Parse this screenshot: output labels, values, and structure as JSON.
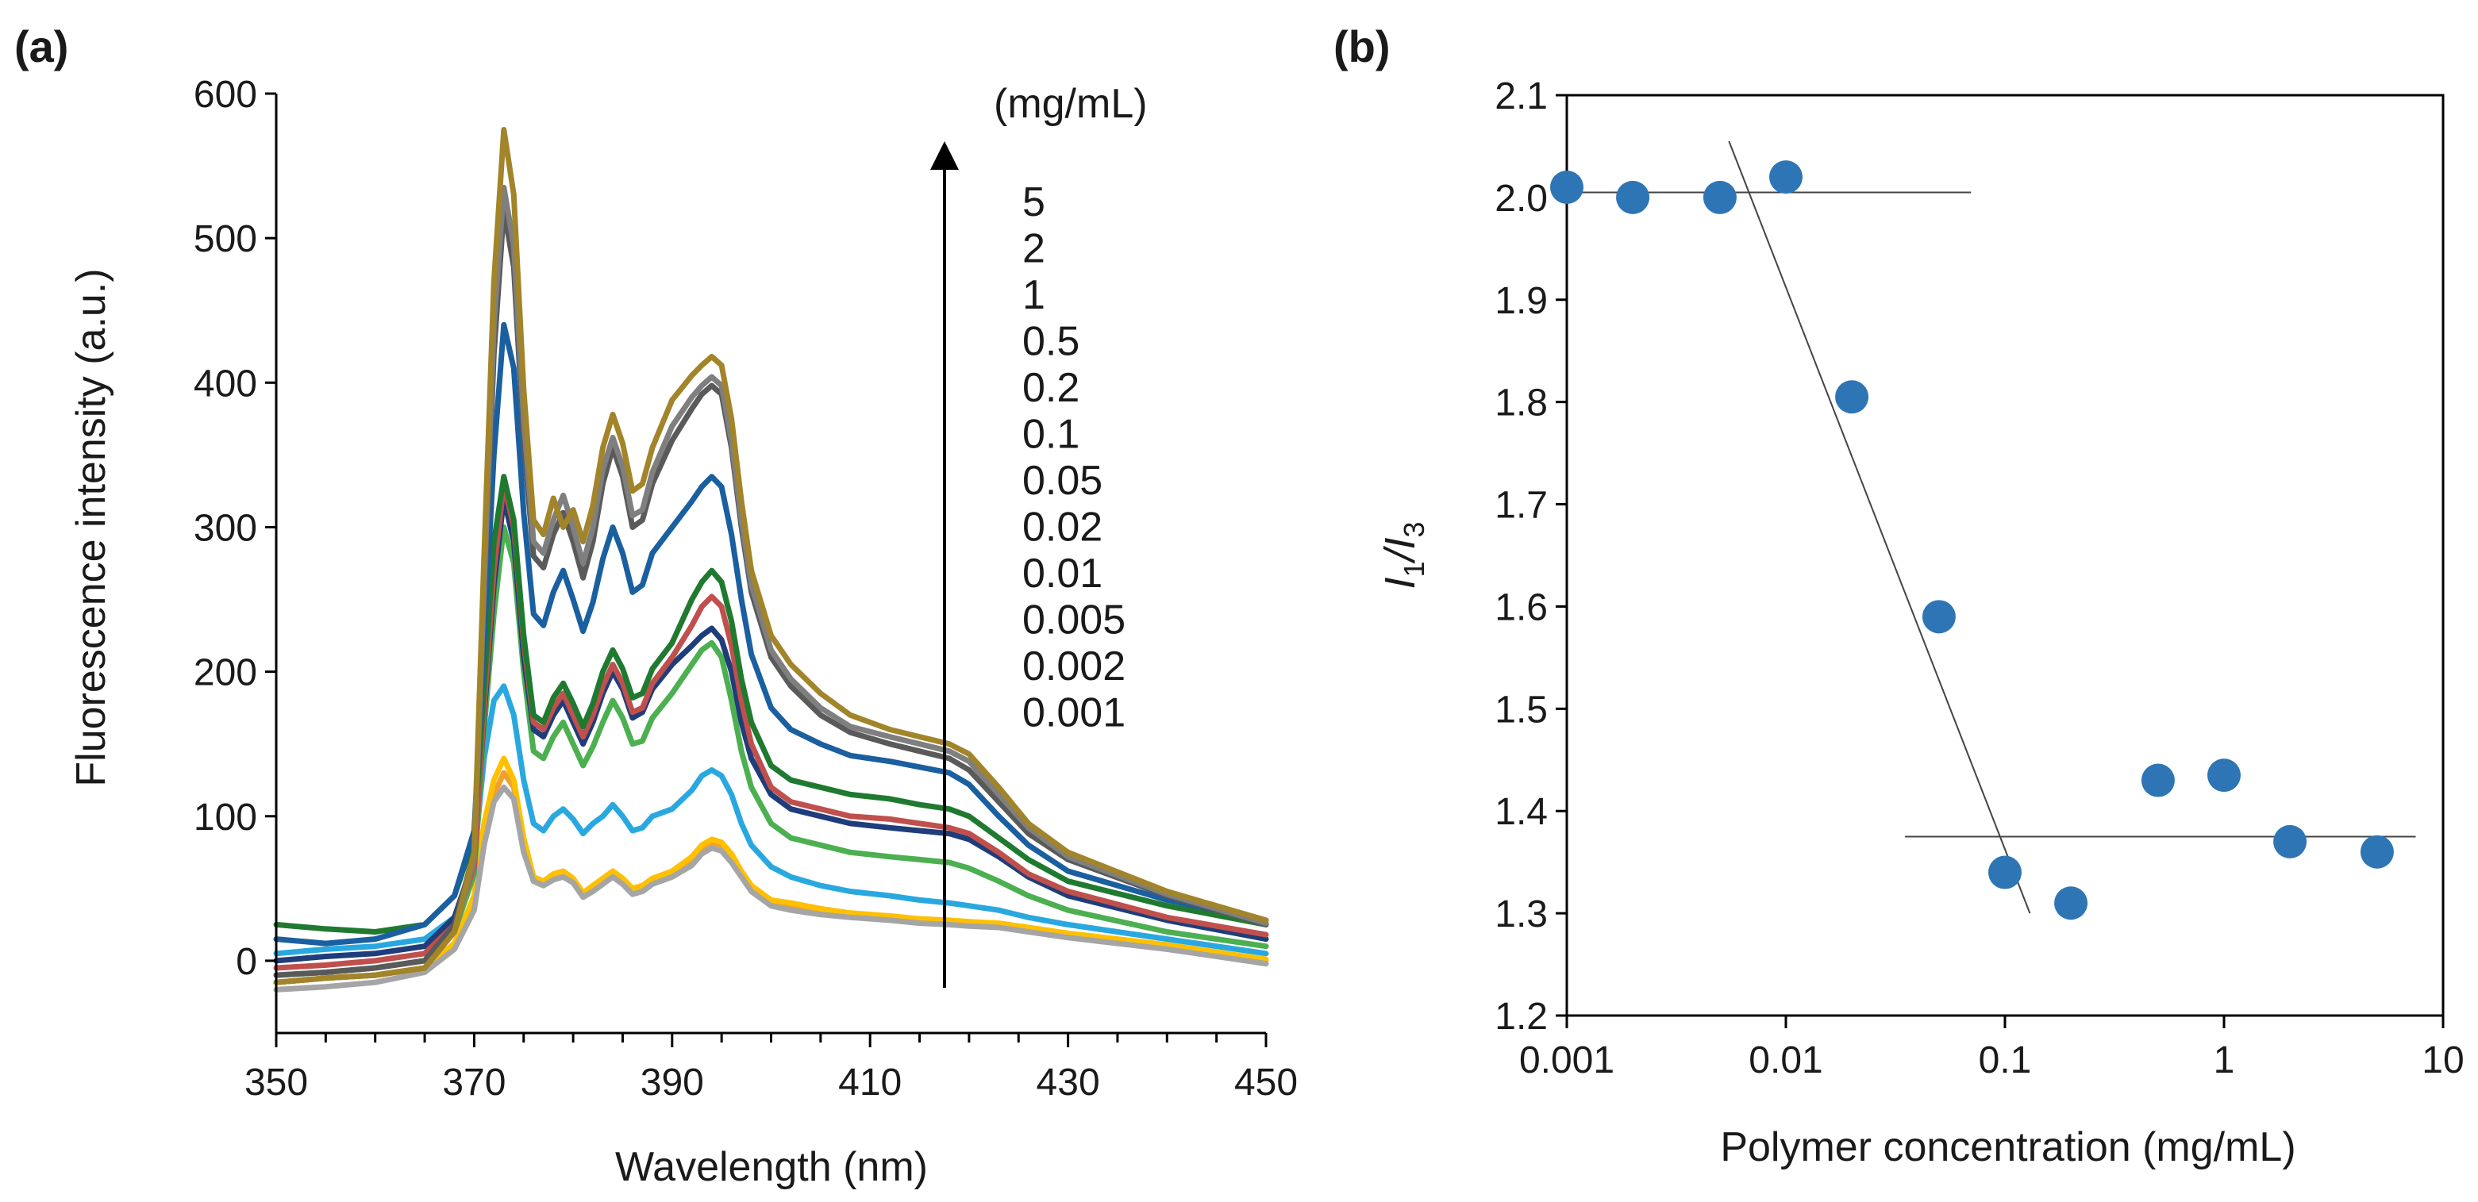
{
  "chart_data": [
    {
      "panel_label": "(a)",
      "type": "line",
      "xlabel": "Wavelength (nm)",
      "ylabel": "Fluorescence intensity (a.u.)",
      "xlim": [
        350,
        450
      ],
      "ylim": [
        -50,
        600
      ],
      "x_ticks": [
        350,
        370,
        390,
        410,
        430,
        450
      ],
      "y_ticks": [
        0,
        100,
        200,
        300,
        400,
        500,
        600
      ],
      "legend_title": "(mg/mL)",
      "legend_entries": [
        "5",
        "2",
        "1",
        "0.5",
        "0.2",
        "0.1",
        "0.05",
        "0.02",
        "0.01",
        "0.005",
        "0.002",
        "0.001"
      ],
      "x": [
        350,
        355,
        360,
        365,
        368,
        370,
        371,
        372,
        373,
        374,
        375,
        376,
        377,
        378,
        379,
        380,
        381,
        382,
        383,
        384,
        385,
        386,
        387,
        388,
        390,
        392,
        393,
        394,
        395,
        396,
        397,
        398,
        400,
        402,
        405,
        408,
        412,
        415,
        418,
        420,
        423,
        426,
        430,
        440,
        450
      ],
      "series": [
        {
          "name": "0.001",
          "color": "#f0a030",
          "values": [
            -15,
            -12,
            -10,
            -5,
            10,
            40,
            85,
            115,
            130,
            120,
            80,
            55,
            52,
            58,
            60,
            55,
            45,
            50,
            55,
            60,
            55,
            48,
            50,
            55,
            60,
            70,
            78,
            82,
            80,
            72,
            60,
            50,
            40,
            38,
            35,
            32,
            30,
            28,
            27,
            26,
            25,
            22,
            18,
            10,
            0
          ]
        },
        {
          "name": "0.002",
          "color": "#ffc000",
          "values": [
            -15,
            -12,
            -10,
            -5,
            12,
            45,
            95,
            125,
            140,
            125,
            85,
            58,
            55,
            60,
            62,
            57,
            47,
            52,
            57,
            62,
            57,
            50,
            52,
            57,
            62,
            72,
            80,
            84,
            82,
            74,
            62,
            52,
            42,
            40,
            36,
            33,
            31,
            29,
            28,
            27,
            26,
            23,
            19,
            11,
            1
          ]
        },
        {
          "name": "0.005",
          "color": "#a5a5a5",
          "values": [
            -20,
            -18,
            -15,
            -8,
            8,
            35,
            80,
            110,
            120,
            112,
            75,
            55,
            52,
            56,
            58,
            54,
            44,
            48,
            53,
            58,
            53,
            46,
            48,
            53,
            58,
            66,
            74,
            78,
            76,
            68,
            58,
            48,
            38,
            35,
            32,
            30,
            28,
            26,
            25,
            24,
            23,
            20,
            16,
            8,
            -2
          ]
        },
        {
          "name": "0.01",
          "color": "#29a8e0",
          "values": [
            5,
            8,
            10,
            15,
            30,
            70,
            140,
            180,
            190,
            170,
            125,
            95,
            90,
            100,
            105,
            98,
            88,
            95,
            100,
            108,
            100,
            90,
            92,
            100,
            105,
            118,
            128,
            132,
            128,
            115,
            95,
            80,
            65,
            58,
            52,
            48,
            45,
            42,
            40,
            38,
            35,
            30,
            25,
            15,
            5
          ]
        },
        {
          "name": "0.02",
          "color": "#4caf50",
          "values": [
            -10,
            -8,
            -5,
            0,
            20,
            60,
            160,
            240,
            300,
            275,
            200,
            145,
            140,
            155,
            165,
            150,
            135,
            148,
            165,
            180,
            168,
            150,
            152,
            168,
            185,
            205,
            215,
            220,
            210,
            180,
            145,
            120,
            95,
            85,
            80,
            75,
            72,
            70,
            68,
            64,
            55,
            45,
            35,
            20,
            10
          ]
        },
        {
          "name": "0.05",
          "color": "#1f3d7a",
          "values": [
            0,
            3,
            5,
            10,
            30,
            70,
            170,
            260,
            320,
            290,
            210,
            160,
            155,
            170,
            180,
            165,
            150,
            165,
            185,
            200,
            188,
            168,
            172,
            188,
            205,
            218,
            225,
            230,
            222,
            200,
            165,
            140,
            115,
            105,
            100,
            95,
            92,
            90,
            88,
            84,
            72,
            58,
            45,
            28,
            15
          ]
        },
        {
          "name": "0.1",
          "color": "#c0504d",
          "values": [
            -5,
            -3,
            0,
            5,
            25,
            65,
            175,
            270,
            330,
            300,
            220,
            165,
            160,
            175,
            185,
            170,
            155,
            170,
            190,
            205,
            192,
            172,
            175,
            192,
            210,
            232,
            245,
            252,
            245,
            218,
            180,
            150,
            120,
            110,
            105,
            100,
            98,
            95,
            92,
            88,
            75,
            60,
            48,
            30,
            18
          ]
        },
        {
          "name": "0.2",
          "color": "#1f7a30",
          "values": [
            25,
            22,
            20,
            25,
            45,
            85,
            190,
            290,
            335,
            305,
            225,
            170,
            165,
            182,
            192,
            178,
            162,
            178,
            200,
            215,
            202,
            182,
            185,
            202,
            220,
            250,
            262,
            270,
            262,
            235,
            195,
            165,
            135,
            125,
            120,
            115,
            112,
            108,
            105,
            100,
            85,
            70,
            55,
            38,
            25
          ]
        },
        {
          "name": "0.5",
          "color": "#1a5fa0",
          "values": [
            15,
            12,
            15,
            25,
            45,
            90,
            220,
            350,
            440,
            410,
            310,
            240,
            232,
            255,
            270,
            250,
            228,
            248,
            278,
            300,
            282,
            255,
            260,
            282,
            300,
            318,
            328,
            335,
            328,
            295,
            250,
            212,
            175,
            160,
            150,
            142,
            138,
            134,
            130,
            122,
            100,
            80,
            62,
            42,
            28
          ]
        },
        {
          "name": "1",
          "color": "#5a5a5a",
          "values": [
            -10,
            -8,
            -5,
            0,
            25,
            75,
            250,
            420,
            520,
            480,
            360,
            280,
            272,
            295,
            310,
            290,
            265,
            290,
            330,
            355,
            335,
            300,
            305,
            330,
            360,
            382,
            392,
            398,
            392,
            355,
            300,
            255,
            210,
            190,
            170,
            158,
            150,
            145,
            140,
            132,
            110,
            88,
            70,
            45,
            25
          ]
        },
        {
          "name": "2",
          "color": "#7f7f7f",
          "values": [
            -15,
            -12,
            -10,
            -5,
            20,
            70,
            260,
            440,
            535,
            495,
            375,
            290,
            282,
            305,
            322,
            300,
            275,
            300,
            340,
            362,
            342,
            308,
            312,
            338,
            370,
            390,
            398,
            404,
            398,
            360,
            305,
            260,
            215,
            195,
            175,
            162,
            155,
            150,
            145,
            138,
            115,
            92,
            72,
            46,
            26
          ]
        },
        {
          "name": "5",
          "color": "#a2842a",
          "values": [
            -15,
            -12,
            -10,
            -5,
            20,
            75,
            280,
            470,
            575,
            530,
            395,
            305,
            295,
            320,
            300,
            312,
            290,
            315,
            355,
            378,
            358,
            325,
            330,
            355,
            388,
            405,
            412,
            418,
            412,
            375,
            318,
            270,
            225,
            205,
            185,
            170,
            160,
            155,
            150,
            143,
            120,
            95,
            75,
            48,
            28
          ]
        }
      ]
    },
    {
      "panel_label": "(b)",
      "type": "scatter",
      "xlabel": "Polymer concentration (mg/mL)",
      "ylabel_main": "I",
      "ylabel_sub1": "1",
      "ylabel_sep": "/I",
      "ylabel_sub2": "3",
      "xscale": "log",
      "xlim": [
        0.001,
        10
      ],
      "ylim": [
        1.2,
        2.1
      ],
      "x_tick_labels": [
        "0.001",
        "0.01",
        "0.1",
        "1",
        "10"
      ],
      "y_tick_labels": [
        "1.2",
        "1.3",
        "1.4",
        "1.5",
        "1.6",
        "1.7",
        "1.8",
        "1.9",
        "2.0",
        "2.1"
      ],
      "point_color": "#2e75b6",
      "x": [
        0.001,
        0.002,
        0.005,
        0.01,
        0.02,
        0.05,
        0.1,
        0.2,
        0.5,
        1,
        2,
        5
      ],
      "y": [
        2.01,
        2.0,
        2.0,
        2.02,
        1.805,
        1.59,
        1.34,
        1.31,
        1.43,
        1.435,
        1.37,
        1.36
      ],
      "fit_lines": [
        {
          "x": [
            0.001,
            0.07
          ],
          "y": [
            2.005,
            2.005
          ]
        },
        {
          "x": [
            0.0055,
            0.13
          ],
          "y": [
            2.055,
            1.3
          ]
        },
        {
          "x": [
            0.035,
            7.5
          ],
          "y": [
            1.375,
            1.375
          ]
        }
      ]
    }
  ]
}
